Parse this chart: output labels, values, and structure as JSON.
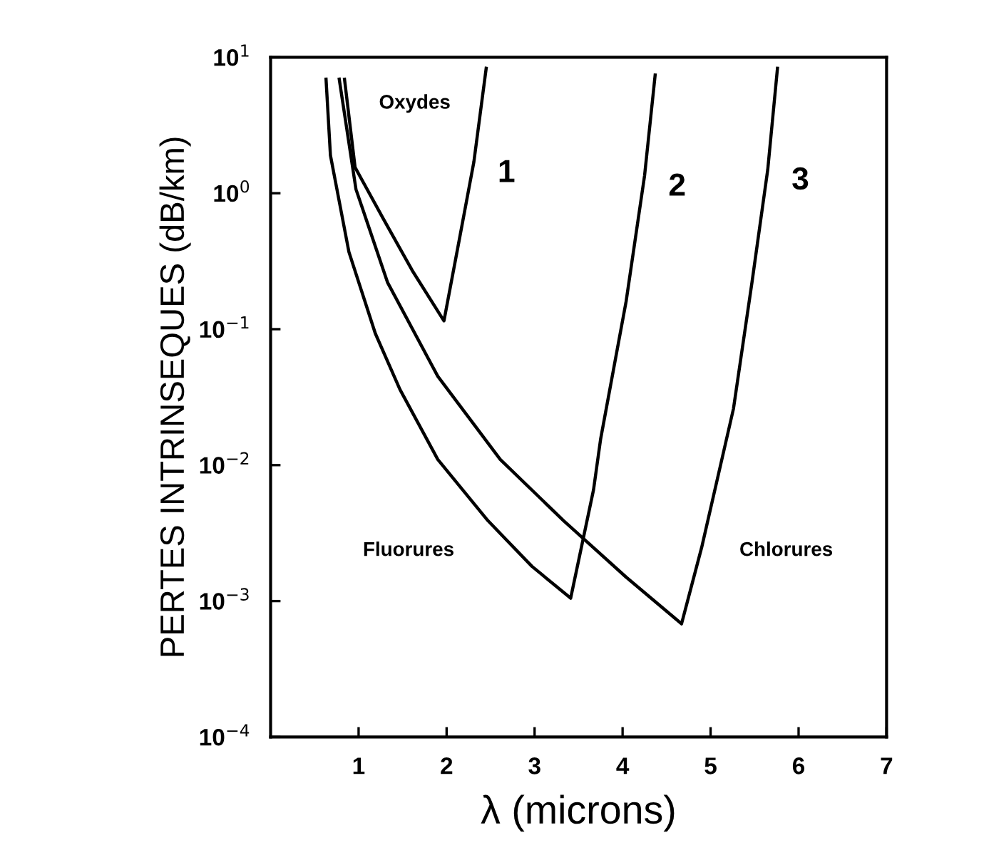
{
  "chart_data": {
    "type": "line",
    "xlabel": "λ (microns)",
    "ylabel": "PERTES INTRINSEQUES (dB/km)",
    "log": "y",
    "xlim": [
      0,
      7
    ],
    "ylim": [
      0.0001,
      10
    ],
    "xticks": [
      1,
      2,
      3,
      4,
      5,
      6,
      7
    ],
    "yticks": [
      {
        "value": 0.0001,
        "label": "10$^{−4}$"
      },
      {
        "value": 0.001,
        "label": "10$^{−3}$"
      },
      {
        "value": 0.01,
        "label": "10$^{−2}$"
      },
      {
        "value": 0.1,
        "label": "10$^{−1}$"
      },
      {
        "value": 1,
        "label": "10$^{0}$"
      },
      {
        "value": 10,
        "label": "10$^{1}$"
      }
    ],
    "grid": false,
    "legend": false,
    "marker": "none",
    "line_style": "solid",
    "series": [
      {
        "name": "1",
        "color": "#000000",
        "x": [
          0.84,
          0.96,
          1.28,
          1.61,
          1.97,
          2.14,
          2.31,
          2.45
        ],
        "values": [
          6.9,
          1.55,
          0.65,
          0.27,
          0.115,
          0.44,
          1.7,
          8.3
        ]
      },
      {
        "name": "2",
        "color": "#000000",
        "x": [
          0.63,
          0.68,
          0.89,
          1.19,
          1.47,
          1.9,
          2.47,
          2.97,
          3.41,
          3.67,
          3.75,
          4.04,
          4.25,
          4.37
        ],
        "values": [
          6.9,
          1.9,
          0.37,
          0.093,
          0.036,
          0.011,
          0.0039,
          0.0018,
          0.00105,
          0.0066,
          0.0155,
          0.16,
          1.35,
          7.4
        ]
      },
      {
        "name": "3",
        "color": "#000000",
        "x": [
          0.78,
          0.97,
          1.33,
          1.9,
          2.61,
          3.33,
          4.04,
          4.67,
          4.9,
          5.26,
          5.47,
          5.65,
          5.76
        ],
        "values": [
          6.9,
          1.07,
          0.22,
          0.045,
          0.011,
          0.0039,
          0.0015,
          0.00068,
          0.0025,
          0.026,
          0.22,
          1.5,
          8.3
        ]
      }
    ],
    "annotations": [
      "Oxydes",
      "Fluorures",
      "Chlorures"
    ]
  }
}
